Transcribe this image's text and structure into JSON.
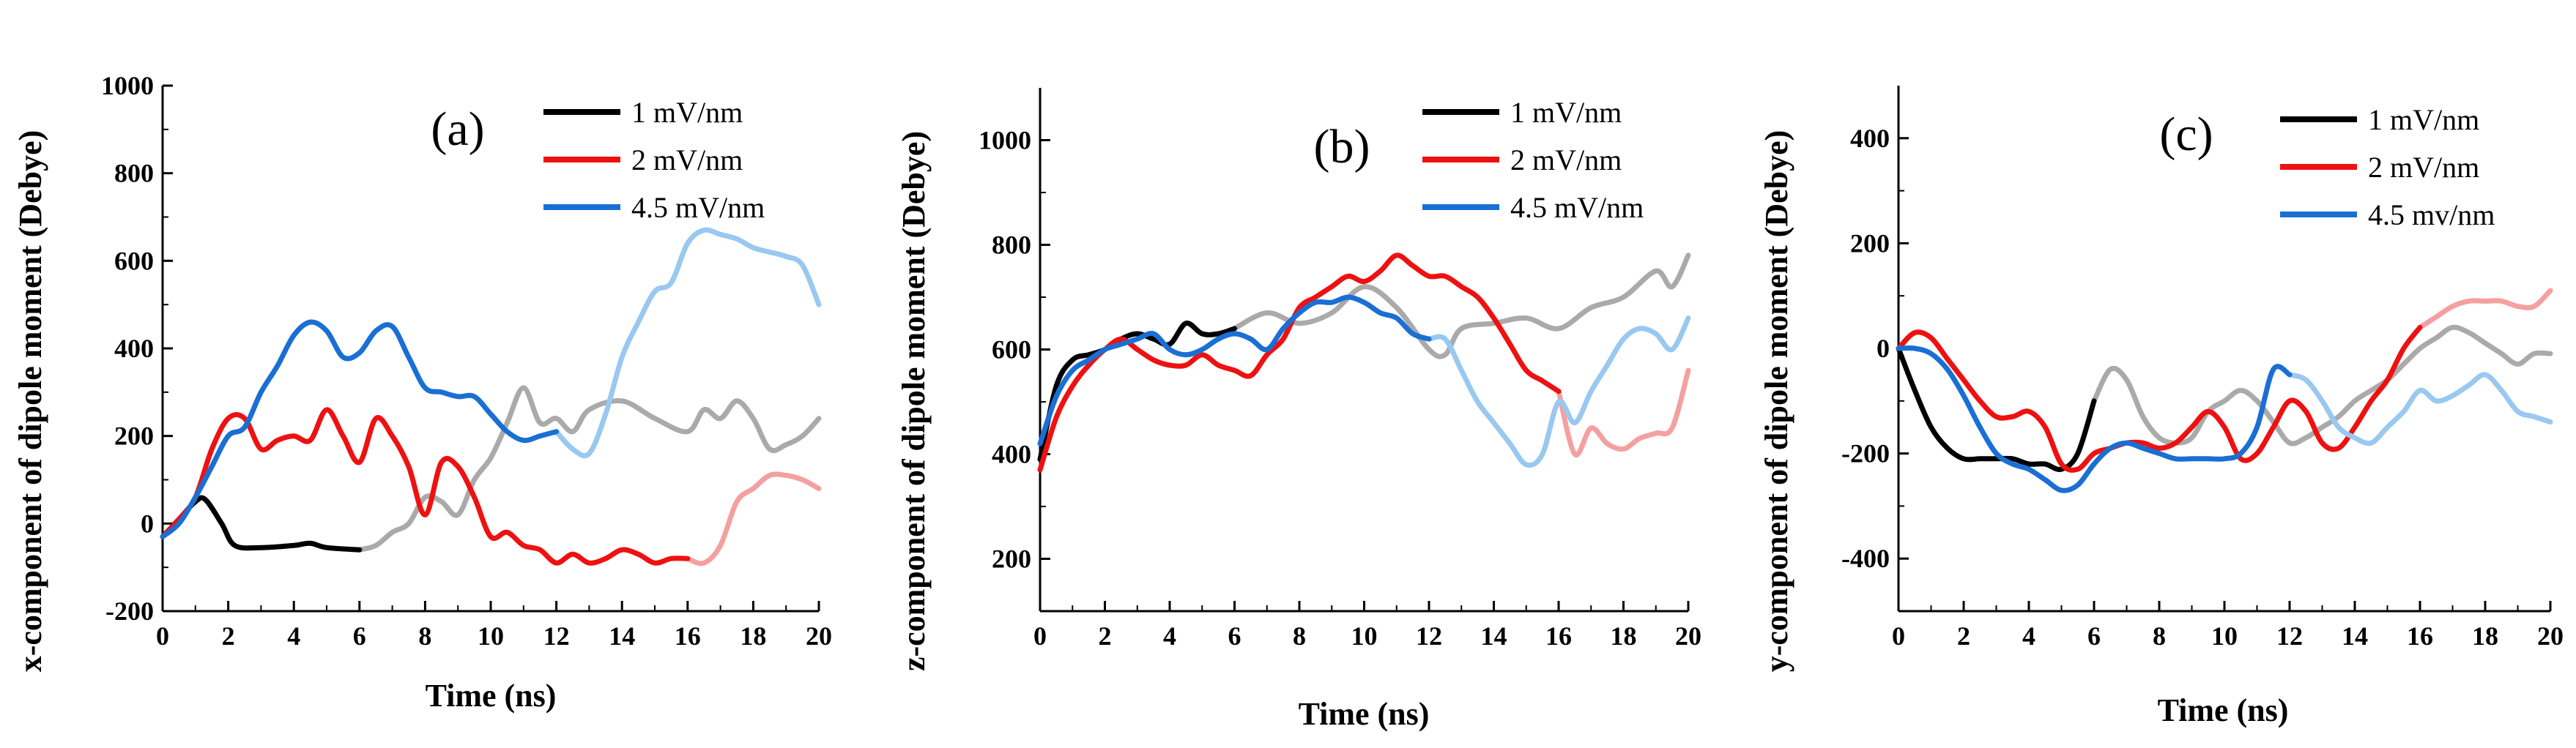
{
  "chart_data": [
    {
      "type": "line",
      "panel_label": "(a)",
      "xlabel": "Time (ns)",
      "ylabel": "x-component of dipole moment (Debye)",
      "xlim": [
        0,
        20
      ],
      "ylim": [
        -200,
        1000
      ],
      "xticks": [
        0,
        2,
        4,
        6,
        8,
        10,
        12,
        14,
        16,
        18,
        20
      ],
      "yticks": [
        -200,
        0,
        200,
        400,
        600,
        800,
        1000
      ],
      "legend_position": "top-right",
      "series": [
        {
          "name": "1 mV/nm",
          "color": "#000000",
          "faded_color": "#aaaaaa",
          "fade_from": 6,
          "x": [
            0,
            0.5,
            1,
            1.3,
            1.8,
            2.2,
            3,
            4,
            4.5,
            5,
            6,
            6.5,
            7,
            7.5,
            8,
            8.5,
            9,
            9.5,
            10,
            10.5,
            11,
            11.5,
            12,
            12.5,
            13,
            14,
            15,
            16,
            16.5,
            17,
            17.5,
            18,
            18.5,
            19,
            19.5,
            20
          ],
          "y": [
            -30,
            10,
            50,
            55,
            0,
            -50,
            -55,
            -50,
            -45,
            -55,
            -60,
            -50,
            -20,
            0,
            60,
            50,
            20,
            100,
            150,
            230,
            310,
            230,
            240,
            210,
            260,
            280,
            240,
            210,
            260,
            240,
            280,
            240,
            170,
            180,
            200,
            240
          ]
        },
        {
          "name": "2 mV/nm",
          "color": "#ee1111",
          "faded_color": "#f5a0a0",
          "fade_from": 16,
          "x": [
            0,
            0.5,
            1,
            1.5,
            2,
            2.5,
            3,
            3.5,
            4,
            4.5,
            5,
            5.5,
            6,
            6.5,
            7,
            7.5,
            8,
            8.5,
            9,
            9.5,
            10,
            10.5,
            11,
            11.5,
            12,
            12.5,
            13,
            13.5,
            14,
            14.5,
            15,
            15.5,
            16,
            16.5,
            17,
            17.5,
            18,
            18.5,
            19,
            19.5,
            20
          ],
          "y": [
            -30,
            10,
            60,
            170,
            240,
            240,
            170,
            190,
            200,
            190,
            260,
            200,
            140,
            240,
            200,
            130,
            20,
            140,
            130,
            60,
            -30,
            -20,
            -50,
            -60,
            -90,
            -70,
            -90,
            -80,
            -60,
            -70,
            -90,
            -80,
            -80,
            -90,
            -50,
            50,
            80,
            110,
            110,
            100,
            80
          ]
        },
        {
          "name": "4.5 mV/nm",
          "color": "#1a6fd4",
          "faded_color": "#99c8f0",
          "fade_from": 12,
          "x": [
            0,
            0.5,
            1,
            1.5,
            2,
            2.5,
            3,
            3.5,
            4,
            4.5,
            5,
            5.5,
            6,
            6.5,
            7,
            7.5,
            8,
            8.5,
            9,
            9.5,
            10,
            10.5,
            11,
            11.5,
            12,
            12.5,
            13,
            13.5,
            14,
            14.5,
            15,
            15.5,
            16,
            16.5,
            17,
            17.5,
            18,
            18.5,
            19,
            19.5,
            20
          ],
          "y": [
            -30,
            0,
            60,
            130,
            200,
            220,
            300,
            360,
            430,
            460,
            440,
            380,
            390,
            440,
            450,
            380,
            310,
            300,
            290,
            290,
            250,
            210,
            190,
            200,
            210,
            170,
            160,
            250,
            380,
            460,
            530,
            550,
            640,
            670,
            660,
            650,
            630,
            620,
            610,
            590,
            500
          ]
        }
      ]
    },
    {
      "type": "line",
      "panel_label": "(b)",
      "xlabel": "Time (ns)",
      "ylabel": "z-component of dipole moment (Debye)",
      "xlim": [
        0,
        20
      ],
      "ylim": [
        100,
        1100
      ],
      "xticks": [
        0,
        2,
        4,
        6,
        8,
        10,
        12,
        14,
        16,
        18,
        20
      ],
      "yticks": [
        200,
        400,
        600,
        800,
        1000
      ],
      "legend_position": "top-right",
      "series": [
        {
          "name": "1 mV/nm",
          "color": "#000000",
          "faded_color": "#aaaaaa",
          "fade_from": 6,
          "x": [
            0,
            0.5,
            1,
            1.5,
            2,
            2.5,
            3,
            3.5,
            4,
            4.5,
            5,
            5.5,
            6,
            7,
            8,
            9,
            10,
            11,
            12,
            12.5,
            13,
            14,
            15,
            16,
            17,
            18,
            19,
            19.5,
            20
          ],
          "y": [
            390,
            530,
            580,
            590,
            600,
            620,
            630,
            620,
            610,
            650,
            630,
            630,
            640,
            670,
            650,
            670,
            720,
            680,
            600,
            590,
            640,
            650,
            660,
            640,
            680,
            700,
            750,
            720,
            780
          ]
        },
        {
          "name": "2 mV/nm",
          "color": "#ee1111",
          "faded_color": "#f5a0a0",
          "fade_from": 16,
          "x": [
            0,
            0.5,
            1,
            1.5,
            2,
            2.5,
            3,
            3.5,
            4,
            4.5,
            5,
            5.5,
            6,
            6.5,
            7,
            7.5,
            8,
            8.5,
            9,
            9.5,
            10,
            10.5,
            11,
            11.5,
            12,
            12.5,
            13,
            13.5,
            14,
            14.5,
            15,
            15.5,
            16,
            16.5,
            17,
            17.5,
            18,
            18.5,
            19,
            19.5,
            20
          ],
          "y": [
            370,
            470,
            530,
            570,
            600,
            620,
            600,
            580,
            570,
            570,
            590,
            570,
            560,
            550,
            590,
            620,
            680,
            700,
            720,
            740,
            730,
            750,
            780,
            760,
            740,
            740,
            720,
            700,
            660,
            610,
            560,
            540,
            520,
            400,
            450,
            420,
            410,
            430,
            440,
            450,
            560
          ]
        },
        {
          "name": "4.5 mV/nm",
          "color": "#1a6fd4",
          "faded_color": "#99c8f0",
          "fade_from": 12,
          "x": [
            0,
            0.5,
            1,
            1.5,
            2,
            2.5,
            3,
            3.5,
            4,
            4.5,
            5,
            5.5,
            6,
            6.5,
            7,
            7.5,
            8,
            8.5,
            9,
            9.5,
            10,
            10.5,
            11,
            11.5,
            12,
            12.5,
            13,
            13.5,
            14,
            14.5,
            15,
            15.5,
            16,
            16.5,
            17,
            17.5,
            18,
            18.5,
            19,
            19.5,
            20
          ],
          "y": [
            420,
            510,
            560,
            580,
            600,
            610,
            620,
            630,
            600,
            590,
            600,
            620,
            630,
            620,
            600,
            640,
            670,
            690,
            690,
            700,
            690,
            670,
            660,
            630,
            620,
            620,
            560,
            500,
            460,
            420,
            380,
            400,
            500,
            460,
            520,
            570,
            620,
            640,
            630,
            600,
            660
          ]
        }
      ]
    },
    {
      "type": "line",
      "panel_label": "(c)",
      "xlabel": "Time (ns)",
      "ylabel": "y-component of dipole moment (Debye)",
      "xlim": [
        0,
        20
      ],
      "ylim": [
        -500,
        500
      ],
      "xticks": [
        0,
        2,
        4,
        6,
        8,
        10,
        12,
        14,
        16,
        18,
        20
      ],
      "yticks": [
        -400,
        -200,
        0,
        200,
        400
      ],
      "legend_position": "top-right",
      "series": [
        {
          "name": "1 mV/nm",
          "color": "#000000",
          "faded_color": "#aaaaaa",
          "fade_from": 6,
          "x": [
            0,
            0.5,
            1,
            1.5,
            2,
            2.5,
            3,
            3.5,
            4,
            4.5,
            5,
            5.5,
            6,
            6.5,
            7,
            7.5,
            8,
            8.5,
            9,
            9.5,
            10,
            10.5,
            11,
            11.5,
            12,
            12.5,
            13,
            13.5,
            14,
            14.5,
            15,
            15.5,
            16,
            16.5,
            17,
            17.5,
            18,
            18.5,
            19,
            19.5,
            20
          ],
          "y": [
            0,
            -80,
            -150,
            -190,
            -210,
            -210,
            -210,
            -210,
            -220,
            -220,
            -230,
            -200,
            -100,
            -40,
            -60,
            -130,
            -170,
            -180,
            -170,
            -120,
            -100,
            -80,
            -100,
            -140,
            -180,
            -170,
            -150,
            -130,
            -100,
            -80,
            -60,
            -30,
            0,
            20,
            40,
            30,
            10,
            -10,
            -30,
            -10,
            -10
          ]
        },
        {
          "name": "2 mV/nm",
          "color": "#ee1111",
          "faded_color": "#f5a0a0",
          "fade_from": 16,
          "x": [
            0,
            0.5,
            1,
            1.5,
            2,
            2.5,
            3,
            3.5,
            4,
            4.5,
            5,
            5.5,
            6,
            6.5,
            7,
            7.5,
            8,
            8.5,
            9,
            9.5,
            10,
            10.5,
            11,
            11.5,
            12,
            12.5,
            13,
            13.5,
            14,
            14.5,
            15,
            15.5,
            16,
            16.5,
            17,
            17.5,
            18,
            18.5,
            19,
            19.5,
            20
          ],
          "y": [
            0,
            30,
            20,
            -20,
            -60,
            -100,
            -130,
            -130,
            -120,
            -150,
            -220,
            -230,
            -200,
            -190,
            -180,
            -180,
            -190,
            -180,
            -150,
            -120,
            -150,
            -210,
            -200,
            -150,
            -100,
            -120,
            -180,
            -190,
            -150,
            -100,
            -60,
            0,
            40,
            60,
            80,
            90,
            90,
            90,
            80,
            80,
            110
          ]
        },
        {
          "name": "4.5 mv/nm",
          "color": "#1a6fd4",
          "faded_color": "#99c8f0",
          "fade_from": 12,
          "x": [
            0,
            0.5,
            1,
            1.5,
            2,
            2.5,
            3,
            3.5,
            4,
            4.5,
            5,
            5.5,
            6,
            6.5,
            7,
            7.5,
            8,
            8.5,
            9,
            9.5,
            10,
            10.5,
            11,
            11.5,
            12,
            12.5,
            13,
            13.5,
            14,
            14.5,
            15,
            15.5,
            16,
            16.5,
            17,
            17.5,
            18,
            18.5,
            19,
            19.5,
            20
          ],
          "y": [
            0,
            0,
            -10,
            -40,
            -90,
            -150,
            -200,
            -220,
            -230,
            -250,
            -270,
            -260,
            -220,
            -190,
            -180,
            -190,
            -200,
            -210,
            -210,
            -210,
            -210,
            -200,
            -150,
            -40,
            -50,
            -60,
            -100,
            -150,
            -170,
            -180,
            -150,
            -120,
            -80,
            -100,
            -90,
            -70,
            -50,
            -80,
            -120,
            -130,
            -140
          ]
        }
      ]
    }
  ]
}
